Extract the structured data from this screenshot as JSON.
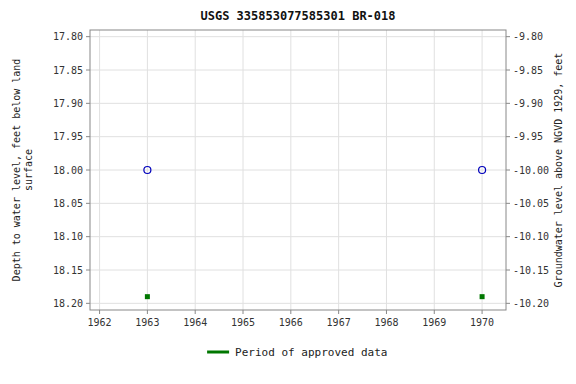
{
  "chart_data": {
    "type": "scatter",
    "title": "USGS 335853077585301 BR-018",
    "xlim": [
      1961.8,
      1970.5
    ],
    "xticks": [
      1962,
      1963,
      1964,
      1965,
      1966,
      1967,
      1968,
      1969,
      1970
    ],
    "ylim": [
      18.21,
      17.79
    ],
    "yticks": [
      {
        "value": 17.8,
        "label": "17.80"
      },
      {
        "value": 17.85,
        "label": "17.85"
      },
      {
        "value": 17.9,
        "label": "17.90"
      },
      {
        "value": 17.95,
        "label": "17.95"
      },
      {
        "value": 18.0,
        "label": "18.00"
      },
      {
        "value": 18.05,
        "label": "18.05"
      },
      {
        "value": 18.1,
        "label": "18.10"
      },
      {
        "value": 18.15,
        "label": "18.15"
      },
      {
        "value": 18.2,
        "label": "18.20"
      }
    ],
    "y2lim": [
      -10.21,
      -9.79
    ],
    "y2ticks": [
      {
        "value": -9.8,
        "label": "-9.80"
      },
      {
        "value": -9.85,
        "label": "-9.85"
      },
      {
        "value": -9.9,
        "label": "-9.90"
      },
      {
        "value": -9.95,
        "label": "-9.95"
      },
      {
        "value": -10.0,
        "label": "-10.00"
      },
      {
        "value": -10.05,
        "label": "-10.05"
      },
      {
        "value": -10.1,
        "label": "-10.10"
      },
      {
        "value": -10.15,
        "label": "-10.15"
      },
      {
        "value": -10.2,
        "label": "-10.20"
      }
    ],
    "ylabel": "Depth to water level, feet below land\nsurface",
    "y2label": "Groundwater level above NGVD 1929, feet",
    "grid": true,
    "legend": "bottom",
    "series": [
      {
        "color": "#0000BB",
        "marker": "circle",
        "x": [
          1963.0,
          1970.0
        ],
        "values": [
          18.0,
          18.0
        ]
      },
      {
        "name": "Period of approved data",
        "color": "#007700",
        "marker": "square",
        "x": [
          1963.0,
          1970.0
        ],
        "values": [
          18.19,
          18.19
        ]
      }
    ]
  }
}
